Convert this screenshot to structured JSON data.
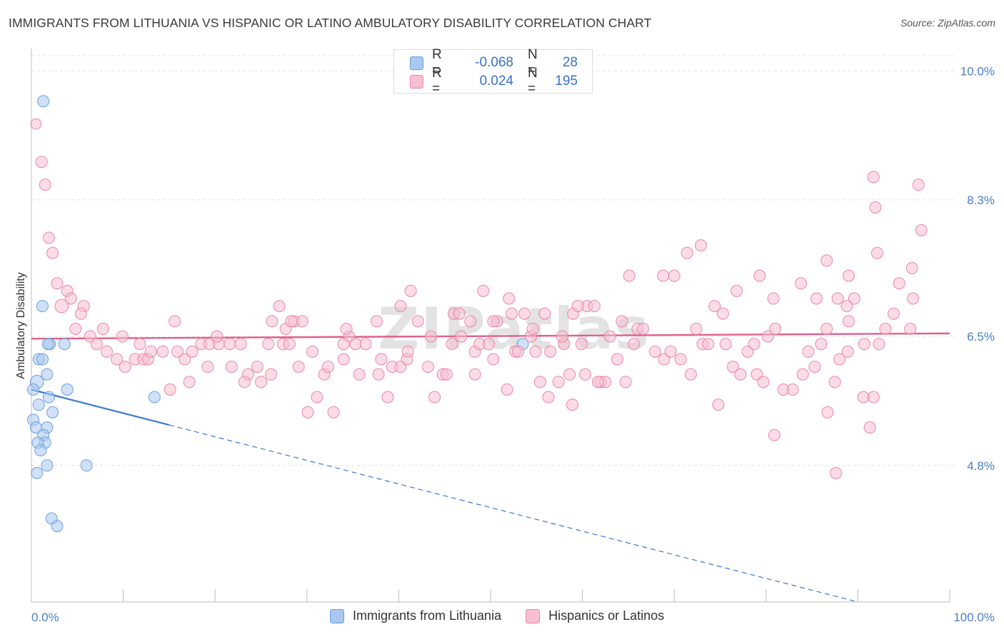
{
  "header": {
    "title": "IMMIGRANTS FROM LITHUANIA VS HISPANIC OR LATINO AMBULATORY DISABILITY CORRELATION CHART",
    "source": "Source: ZipAtlas.com"
  },
  "watermark": "ZIPatlas",
  "legend": {
    "rows": [
      {
        "r_label": "R =",
        "r_value": "-0.068",
        "n_label": "N =",
        "n_value": "28",
        "color": "#a9c8f0",
        "border": "#6b9fe0"
      },
      {
        "r_label": "R =",
        "r_value": "0.024",
        "n_label": "N =",
        "n_value": "195",
        "color": "#f7bfd0",
        "border": "#e888a8"
      }
    ]
  },
  "bottom_legend": {
    "items": [
      {
        "label": "Immigrants from Lithuania",
        "color": "#a9c8f0",
        "border": "#6b9fe0"
      },
      {
        "label": "Hispanics or Latinos",
        "color": "#f7bfd0",
        "border": "#e888a8"
      }
    ]
  },
  "chart_data": {
    "type": "scatter",
    "title": "IMMIGRANTS FROM LITHUANIA VS HISPANIC OR LATINO AMBULATORY DISABILITY CORRELATION CHART",
    "xlabel": "",
    "ylabel": "Ambulatory Disability",
    "xlim": [
      0,
      100
    ],
    "ylim": [
      3.0,
      10.2
    ],
    "x_tick_labels": [
      "0.0%",
      "100.0%"
    ],
    "y_ticks": [
      4.8,
      6.5,
      8.3,
      10.0
    ],
    "y_tick_labels": [
      "4.8%",
      "6.5%",
      "8.3%",
      "10.0%"
    ],
    "grid": true,
    "legend_position": "top-center",
    "series": [
      {
        "name": "Immigrants from Lithuania",
        "color": "#a9c8f0",
        "stroke": "#6b9fe0",
        "trend_color": "#3b78d0",
        "trend": {
          "x0": 0,
          "y0": 5.8,
          "x1": 90,
          "y1": 3.0,
          "solid_until": 15
        },
        "points": [
          [
            1.3,
            9.6
          ],
          [
            1.2,
            6.9
          ],
          [
            2.0,
            6.4
          ],
          [
            1.8,
            6.4
          ],
          [
            3.6,
            6.4
          ],
          [
            0.8,
            6.2
          ],
          [
            1.2,
            6.2
          ],
          [
            1.7,
            6.0
          ],
          [
            0.6,
            5.9
          ],
          [
            0.2,
            5.8
          ],
          [
            3.9,
            5.8
          ],
          [
            1.9,
            5.7
          ],
          [
            13.4,
            5.7
          ],
          [
            0.8,
            5.6
          ],
          [
            2.3,
            5.5
          ],
          [
            0.2,
            5.4
          ],
          [
            0.5,
            5.3
          ],
          [
            1.7,
            5.3
          ],
          [
            1.3,
            5.2
          ],
          [
            1.5,
            5.1
          ],
          [
            0.7,
            5.1
          ],
          [
            1.0,
            5.0
          ],
          [
            1.7,
            4.8
          ],
          [
            6.0,
            4.8
          ],
          [
            0.6,
            4.7
          ],
          [
            2.2,
            4.1
          ],
          [
            2.8,
            4.0
          ],
          [
            53.5,
            6.4
          ]
        ],
        "sizes": [
          12,
          12,
          12,
          12,
          12,
          12,
          12,
          12,
          14,
          12,
          12,
          12,
          12,
          12,
          12,
          12,
          12,
          12,
          12,
          12,
          12,
          12,
          12,
          12,
          12,
          12,
          12,
          12
        ]
      },
      {
        "name": "Hispanics or Latinos",
        "color": "#f7bfd0",
        "stroke": "#e888a8",
        "trend_color": "#e0608a",
        "trend": {
          "x0": 0,
          "y0": 6.47,
          "x1": 100,
          "y1": 6.54
        },
        "points": [
          [
            0.5,
            9.3
          ],
          [
            1.1,
            8.8
          ],
          [
            1.5,
            8.5
          ],
          [
            1.9,
            7.8
          ],
          [
            2.3,
            7.6
          ],
          [
            2.8,
            7.2
          ],
          [
            3.9,
            7.1
          ],
          [
            4.3,
            7.0
          ],
          [
            3.3,
            6.9
          ],
          [
            5.7,
            6.9
          ],
          [
            5.4,
            6.8
          ],
          [
            4.8,
            6.6
          ],
          [
            7.8,
            6.6
          ],
          [
            6.4,
            6.5
          ],
          [
            7.1,
            6.4
          ],
          [
            9.9,
            6.5
          ],
          [
            11.8,
            6.4
          ],
          [
            15.6,
            6.7
          ],
          [
            9.3,
            6.2
          ],
          [
            10.2,
            6.1
          ],
          [
            8.2,
            6.3
          ],
          [
            11.3,
            6.2
          ],
          [
            12.2,
            6.2
          ],
          [
            12.7,
            6.2
          ],
          [
            13.0,
            6.3
          ],
          [
            14.3,
            6.3
          ],
          [
            15.9,
            6.3
          ],
          [
            16.7,
            6.2
          ],
          [
            17.5,
            6.3
          ],
          [
            18.5,
            6.4
          ],
          [
            19.4,
            6.4
          ],
          [
            20.4,
            6.4
          ],
          [
            20.2,
            6.5
          ],
          [
            21.6,
            6.4
          ],
          [
            22.8,
            6.4
          ],
          [
            23.6,
            6.0
          ],
          [
            24.6,
            6.1
          ],
          [
            25.0,
            5.9
          ],
          [
            26.1,
            6.0
          ],
          [
            23.2,
            5.9
          ],
          [
            15.1,
            5.8
          ],
          [
            17.2,
            5.9
          ],
          [
            19.2,
            6.1
          ],
          [
            21.8,
            6.1
          ],
          [
            25.8,
            6.4
          ],
          [
            27.4,
            6.4
          ],
          [
            28.1,
            6.4
          ],
          [
            27.0,
            6.9
          ],
          [
            26.2,
            6.7
          ],
          [
            27.7,
            6.6
          ],
          [
            28.6,
            6.7
          ],
          [
            29.5,
            6.7
          ],
          [
            28.3,
            6.7
          ],
          [
            30.6,
            6.3
          ],
          [
            31.9,
            6.0
          ],
          [
            29.1,
            6.1
          ],
          [
            30.1,
            5.5
          ],
          [
            31.1,
            5.7
          ],
          [
            32.3,
            6.1
          ],
          [
            32.9,
            5.5
          ],
          [
            34.0,
            6.2
          ],
          [
            34.6,
            6.5
          ],
          [
            34.3,
            6.6
          ],
          [
            34.0,
            6.4
          ],
          [
            35.3,
            6.4
          ],
          [
            36.4,
            6.4
          ],
          [
            35.7,
            6.0
          ],
          [
            37.8,
            6.0
          ],
          [
            37.6,
            6.7
          ],
          [
            38.1,
            6.2
          ],
          [
            38.8,
            5.7
          ],
          [
            39.3,
            6.1
          ],
          [
            40.2,
            6.1
          ],
          [
            40.2,
            6.9
          ],
          [
            40.9,
            6.2
          ],
          [
            41.3,
            7.1
          ],
          [
            41.0,
            6.3
          ],
          [
            42.1,
            6.7
          ],
          [
            43.2,
            6.1
          ],
          [
            43.5,
            6.5
          ],
          [
            43.9,
            5.7
          ],
          [
            44.8,
            6.0
          ],
          [
            45.2,
            6.0
          ],
          [
            45.8,
            6.4
          ],
          [
            46.8,
            6.5
          ],
          [
            46.0,
            6.8
          ],
          [
            46.6,
            6.8
          ],
          [
            47.8,
            6.7
          ],
          [
            48.3,
            6.3
          ],
          [
            48.3,
            6.0
          ],
          [
            48.8,
            6.4
          ],
          [
            49.2,
            7.1
          ],
          [
            49.8,
            6.4
          ],
          [
            50.3,
            6.2
          ],
          [
            50.7,
            6.7
          ],
          [
            50.3,
            6.7
          ],
          [
            52.0,
            7.0
          ],
          [
            52.7,
            6.3
          ],
          [
            53.0,
            6.3
          ],
          [
            53.7,
            6.8
          ],
          [
            54.4,
            6.5
          ],
          [
            54.9,
            6.3
          ],
          [
            55.9,
            6.8
          ],
          [
            56.3,
            5.7
          ],
          [
            57.4,
            5.9
          ],
          [
            58.0,
            6.4
          ],
          [
            56.5,
            6.3
          ],
          [
            58.6,
            6.0
          ],
          [
            59.0,
            6.8
          ],
          [
            60.3,
            6.0
          ],
          [
            60.5,
            6.9
          ],
          [
            61.3,
            6.9
          ],
          [
            62.0,
            5.9
          ],
          [
            63.8,
            6.2
          ],
          [
            63.0,
            6.5
          ],
          [
            64.7,
            5.9
          ],
          [
            65.6,
            6.4
          ],
          [
            66.0,
            6.6
          ],
          [
            67.9,
            6.3
          ],
          [
            68.9,
            6.2
          ],
          [
            69.6,
            6.3
          ],
          [
            70.7,
            6.2
          ],
          [
            71.8,
            6.0
          ],
          [
            72.4,
            6.6
          ],
          [
            73.1,
            6.4
          ],
          [
            74.8,
            5.6
          ],
          [
            75.6,
            6.4
          ],
          [
            76.4,
            6.1
          ],
          [
            77.2,
            6.0
          ],
          [
            78.0,
            6.3
          ],
          [
            79.0,
            6.0
          ],
          [
            80.2,
            6.5
          ],
          [
            81.0,
            6.6
          ],
          [
            81.9,
            5.8
          ],
          [
            82.9,
            5.8
          ],
          [
            84.0,
            6.0
          ],
          [
            84.6,
            6.3
          ],
          [
            85.3,
            6.1
          ],
          [
            86.0,
            6.4
          ],
          [
            86.6,
            6.6
          ],
          [
            87.5,
            5.9
          ],
          [
            88.0,
            6.2
          ],
          [
            88.9,
            6.3
          ],
          [
            89.6,
            7.0
          ],
          [
            90.6,
            5.7
          ],
          [
            91.3,
            5.3
          ],
          [
            91.7,
            5.7
          ],
          [
            92.3,
            6.4
          ],
          [
            93.0,
            6.6
          ],
          [
            93.9,
            6.8
          ],
          [
            94.5,
            7.2
          ],
          [
            95.7,
            6.6
          ],
          [
            96.0,
            7.0
          ],
          [
            73.7,
            6.4
          ],
          [
            74.4,
            6.9
          ],
          [
            75.3,
            6.8
          ],
          [
            76.8,
            7.1
          ],
          [
            79.3,
            7.3
          ],
          [
            80.8,
            7.0
          ],
          [
            83.8,
            7.2
          ],
          [
            85.5,
            7.0
          ],
          [
            86.6,
            7.5
          ],
          [
            87.8,
            7.0
          ],
          [
            89.0,
            6.7
          ],
          [
            88.8,
            6.9
          ],
          [
            90.7,
            6.4
          ],
          [
            72.9,
            7.7
          ],
          [
            71.4,
            7.6
          ],
          [
            70.0,
            7.3
          ],
          [
            68.8,
            7.3
          ],
          [
            66.6,
            6.6
          ],
          [
            65.1,
            7.3
          ],
          [
            64.3,
            6.7
          ],
          [
            62.5,
            5.9
          ],
          [
            61.7,
            5.9
          ],
          [
            59.9,
            6.4
          ],
          [
            59.5,
            6.9
          ],
          [
            58.9,
            5.6
          ],
          [
            57.8,
            6.5
          ],
          [
            55.4,
            5.9
          ],
          [
            54.6,
            6.6
          ],
          [
            52.3,
            6.8
          ],
          [
            51.8,
            5.8
          ],
          [
            91.7,
            8.6
          ],
          [
            91.9,
            8.2
          ],
          [
            96.6,
            8.5
          ],
          [
            96.9,
            7.9
          ],
          [
            95.9,
            7.4
          ],
          [
            92.1,
            7.6
          ],
          [
            89.0,
            7.3
          ],
          [
            78.7,
            6.4
          ],
          [
            79.7,
            5.9
          ],
          [
            80.9,
            5.2
          ],
          [
            86.7,
            5.5
          ],
          [
            87.6,
            4.7
          ]
        ],
        "sizes": [
          11,
          12,
          12,
          12,
          12,
          12,
          12,
          12,
          14,
          12,
          12,
          12,
          12,
          12,
          12,
          12,
          12,
          12,
          12,
          12,
          12,
          12,
          12,
          12,
          12,
          12,
          12,
          12,
          12,
          12,
          12,
          12,
          12,
          12,
          12,
          12,
          12,
          12,
          12,
          12,
          12,
          12,
          12,
          12,
          12,
          12,
          12,
          12,
          12,
          12,
          12,
          12,
          12,
          12,
          12,
          12,
          12,
          12,
          12,
          12,
          12,
          12,
          12,
          12,
          12,
          12,
          12,
          12,
          12,
          12,
          12,
          12,
          12,
          12,
          12,
          12,
          12,
          12,
          12,
          12,
          12,
          12,
          12,
          12,
          12,
          12,
          12,
          12,
          12,
          12,
          12,
          12,
          12,
          12,
          12,
          12,
          12,
          12,
          12,
          12,
          12,
          12,
          12,
          12,
          12,
          12,
          12,
          12,
          12,
          12,
          12,
          12,
          12,
          12,
          12,
          12,
          12,
          12,
          12,
          12,
          12,
          12,
          12,
          12,
          12,
          12,
          12,
          12,
          12,
          12,
          12,
          12,
          12,
          12,
          12,
          12,
          12,
          12,
          12,
          12,
          12,
          12,
          12,
          12,
          12,
          12,
          12,
          12,
          12,
          12,
          12,
          12,
          12,
          12,
          12,
          12,
          12,
          12,
          12,
          12,
          12,
          12,
          12,
          12,
          12,
          12,
          12,
          12,
          12,
          12,
          12,
          12,
          12,
          12,
          12,
          12,
          12,
          12,
          12,
          12,
          12,
          12,
          12,
          12,
          12,
          12,
          12,
          12,
          12,
          12,
          12,
          12,
          12,
          12,
          12,
          12,
          12
        ]
      }
    ]
  }
}
